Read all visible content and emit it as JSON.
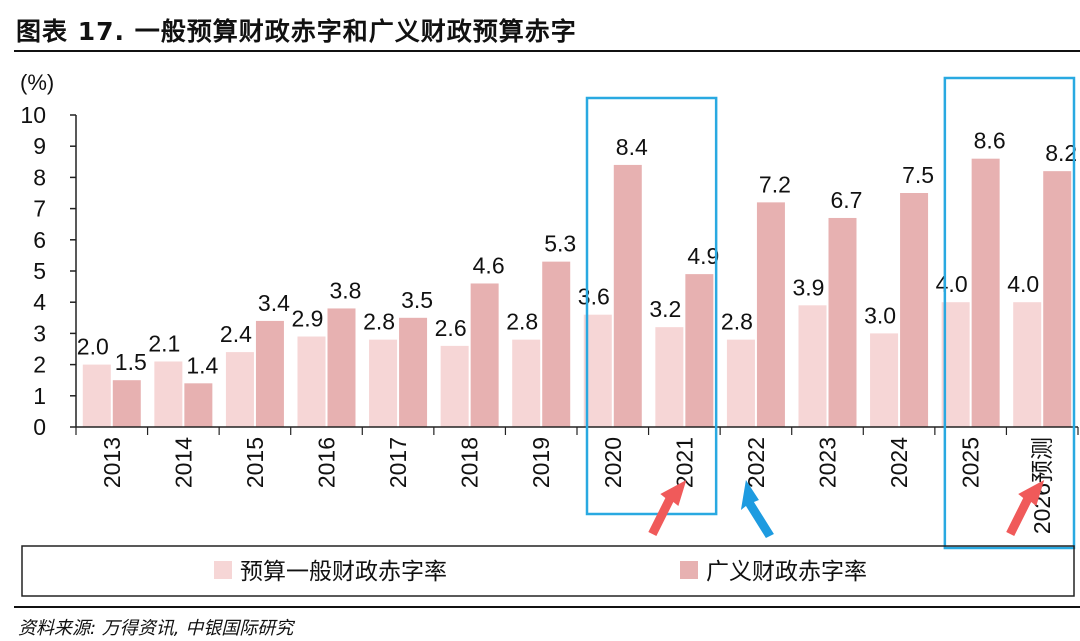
{
  "header": {
    "title": "图表 17. 一般预算财政赤字和广义财政预算赤字"
  },
  "footer": {
    "source": "资料来源: 万得资讯, 中银国际研究"
  },
  "chart_data": {
    "type": "bar",
    "title": "图表 17. 一般预算财政赤字和广义财政预算赤字",
    "ylabel": "(%)",
    "ylim": [
      0,
      10
    ],
    "yticks": [
      "0",
      "1",
      "2",
      "3",
      "4",
      "5",
      "6",
      "7",
      "8",
      "9",
      "10"
    ],
    "categories": [
      "2013",
      "2014",
      "2015",
      "2016",
      "2017",
      "2018",
      "2019",
      "2020",
      "2021",
      "2022",
      "2023",
      "2024",
      "2025",
      "2026预测"
    ],
    "series": [
      {
        "name": "预算一般财政赤字率",
        "color": "#f6d6d6",
        "values": [
          2.0,
          2.1,
          2.4,
          2.9,
          2.8,
          2.6,
          2.8,
          3.6,
          3.2,
          2.8,
          3.9,
          3.0,
          4.0,
          4.0
        ],
        "labels": [
          "2.0",
          "2.1",
          "2.4",
          "2.9",
          "2.8",
          "2.6",
          "2.8",
          "3.6",
          "3.2",
          "2.8",
          "3.9",
          "3.0",
          "4.0",
          "4.0"
        ]
      },
      {
        "name": "广义财政赤字率",
        "color": "#e7b1b1",
        "values": [
          1.5,
          1.4,
          3.4,
          3.8,
          3.5,
          4.6,
          5.3,
          8.4,
          4.9,
          7.2,
          6.7,
          7.5,
          8.6,
          8.2
        ],
        "labels": [
          "1.5",
          "1.4",
          "3.4",
          "3.8",
          "3.5",
          "4.6",
          "5.3",
          "8.4",
          "4.9",
          "7.2",
          "6.7",
          "7.5",
          "8.6",
          "8.2"
        ]
      }
    ],
    "grid": false,
    "legend": "bottom",
    "highlight_boxes": [
      {
        "categories": [
          "2020",
          "2021"
        ],
        "color": "#29a9e1"
      },
      {
        "categories": [
          "2025",
          "2026预测"
        ],
        "color": "#29a9e1"
      }
    ],
    "arrows": [
      {
        "category": "2021",
        "color": "#f05a5a"
      },
      {
        "category": "2022",
        "color": "#1e9be0"
      },
      {
        "category": "2026预测",
        "color": "#f05a5a"
      }
    ]
  }
}
